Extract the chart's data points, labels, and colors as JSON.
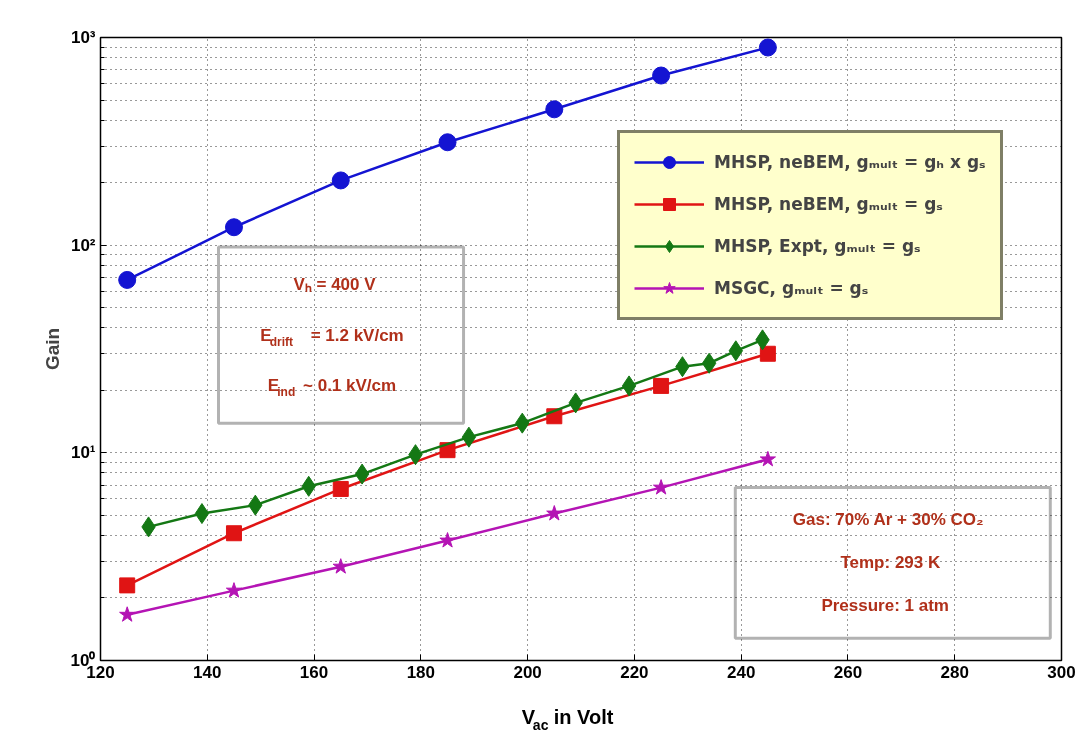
{
  "chart_data": {
    "type": "line",
    "xlabel": "V$_{ac}$ in Volt",
    "ylabel": "Gain",
    "xlim": [
      120,
      300
    ],
    "xticks": [
      120,
      140,
      160,
      180,
      200,
      220,
      240,
      260,
      280,
      300
    ],
    "ylim": [
      1,
      1000
    ],
    "yticks": [
      {
        "value": 1,
        "label": "10⁰"
      },
      {
        "value": 10,
        "label": "10¹"
      },
      {
        "value": 100,
        "label": "10²"
      },
      {
        "value": 1000,
        "label": "10³"
      }
    ],
    "log": "y",
    "grid": true,
    "legend": "top right",
    "series": [
      {
        "name": "MHSP, neBEM, gₘᵤₗₜ = gₕ x gₛ",
        "color": "#1414d2",
        "marker": "circle",
        "x": [
          125,
          145,
          165,
          185,
          205,
          225,
          245
        ],
        "values": [
          68,
          122,
          205,
          313,
          451,
          656,
          895
        ]
      },
      {
        "name": "MHSP, neBEM, gₘᵤₗₜ = gₛ",
        "color": "#e01414",
        "marker": "square",
        "x": [
          125,
          145,
          165,
          185,
          205,
          225,
          245
        ],
        "values": [
          2.3,
          4.1,
          6.7,
          10.3,
          15,
          21,
          30
        ]
      },
      {
        "name": "MHSP, Expt, gₘᵤₗₜ = gₛ",
        "color": "#147814",
        "marker": "diamond",
        "x": [
          129,
          139,
          149,
          159,
          169,
          179,
          189,
          199,
          209,
          219,
          229,
          234,
          239,
          244
        ],
        "values": [
          4.4,
          5.1,
          5.6,
          6.9,
          7.9,
          9.8,
          11.9,
          13.9,
          17.4,
          21,
          26,
          27,
          31,
          35
        ]
      },
      {
        "name": "MSGC, gₘᵤₗₜ = gₛ",
        "color": "#b414b4",
        "marker": "star",
        "x": [
          125,
          145,
          165,
          185,
          205,
          225,
          245
        ],
        "values": [
          1.66,
          2.17,
          2.83,
          3.78,
          5.1,
          6.8,
          9.3
        ]
      }
    ],
    "annotations": [
      "Vₕ = 400 V",
      "E$_{drift}$ = 1.2 kV/cm",
      "E$_{ind}$ ~ 0.1 kV/cm",
      "Gas: 70% Ar + 30% CO₂",
      "Temp: 293 K",
      "Pressure: 1 atm"
    ]
  }
}
